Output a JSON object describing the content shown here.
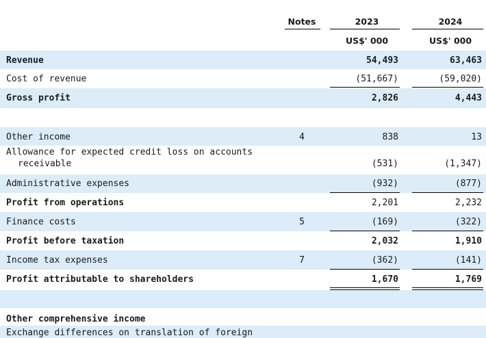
{
  "header": {
    "notes_label": "Notes",
    "year1": "2023",
    "year2": "2024",
    "unit1": "US$' 000",
    "unit2": "US$' 000"
  },
  "rows": {
    "revenue": {
      "label": "Revenue",
      "notes": "",
      "y2023": "54,493",
      "y2024": "63,463"
    },
    "cost_of_revenue": {
      "label": "Cost of revenue",
      "notes": "",
      "y2023": "(51,667)",
      "y2024": "(59,020)"
    },
    "gross_profit": {
      "label": "Gross profit",
      "notes": "",
      "y2023": "2,826",
      "y2024": "4,443"
    },
    "other_income": {
      "label": "Other income",
      "notes": "4",
      "y2023": "838",
      "y2024": "13"
    },
    "allowance": {
      "label_line1": "Allowance for expected credit loss on accounts",
      "label_line2": "receivable",
      "notes": "",
      "y2023": "(531)",
      "y2024": "(1,347)"
    },
    "admin_expenses": {
      "label": "Administrative expenses",
      "notes": "",
      "y2023": "(932)",
      "y2024": "(877)"
    },
    "profit_from_operations": {
      "label": "Profit from operations",
      "notes": "",
      "y2023": "2,201",
      "y2024": "2,232"
    },
    "finance_costs": {
      "label": "Finance costs",
      "notes": "5",
      "y2023": "(169)",
      "y2024": "(322)"
    },
    "profit_before_tax": {
      "label": "Profit before taxation",
      "notes": "",
      "y2023": "2,032",
      "y2024": "1,910"
    },
    "income_tax": {
      "label": "Income tax expenses",
      "notes": "7",
      "y2023": "(362)",
      "y2024": "(141)"
    },
    "profit_attributable": {
      "label": "Profit attributable to shareholders",
      "notes": "",
      "y2023": "1,670",
      "y2024": "1,769"
    },
    "oci_heading": {
      "label": "Other comprehensive income"
    },
    "exchange_diff": {
      "label": "Exchange differences on translation of foreign"
    }
  },
  "colors": {
    "shade": "#dcecf8",
    "rule": "#000000"
  }
}
